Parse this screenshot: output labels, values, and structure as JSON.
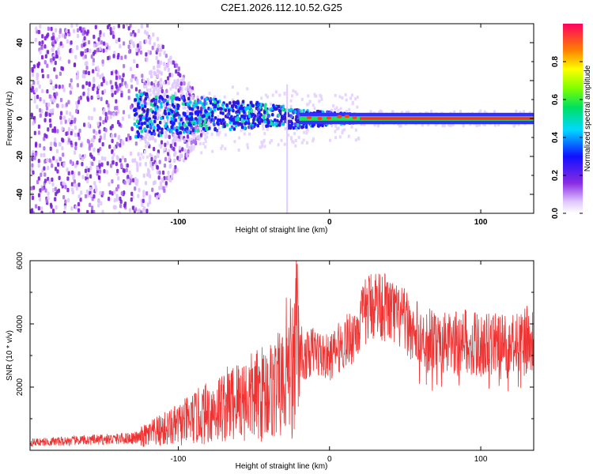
{
  "title": "C2E1.2026.112.10.52.G25",
  "colors": {
    "snr_line": "#ee3333",
    "axis": "#000000",
    "background": "#ffffff"
  },
  "chart_data": [
    {
      "type": "heatmap",
      "name": "spectrogram",
      "title": "C2E1.2026.112.10.52.G25",
      "xlabel": "Height of straight line (km)",
      "ylabel": "Frequency (Hz)",
      "xlim": [
        -198,
        135
      ],
      "ylim": [
        -50,
        50
      ],
      "xticks": [
        -100,
        0,
        100
      ],
      "yticks": [
        -40,
        -20,
        0,
        20,
        40
      ],
      "colorbar": {
        "label": "Normalized spectral amplitude",
        "range": [
          0,
          1
        ],
        "ticks": [
          "0.0",
          "0.2",
          "0.4",
          "0.6",
          "0.8"
        ]
      },
      "description_values": {
        "low_height_region": "broad noise across all frequencies below about -120 km",
        "mid_region_frequency_spread_hz": 10,
        "converged_frequency_hz": 0,
        "converged_from_km": 20
      }
    },
    {
      "type": "line",
      "name": "snr",
      "xlabel": "Height of straight line (km)",
      "ylabel": "SNR (10 * v/v)",
      "xlim": [
        -198,
        135
      ],
      "ylim": [
        0,
        6000
      ],
      "xticks": [
        -100,
        0,
        100
      ],
      "yticks": [
        2000,
        4000,
        6000
      ],
      "series": [
        {
          "name": "SNR",
          "x": [
            -198,
            -180,
            -160,
            -140,
            -125,
            -110,
            -100,
            -90,
            -80,
            -70,
            -60,
            -50,
            -40,
            -30,
            -25,
            -22,
            -20,
            -18,
            -15,
            -10,
            -5,
            0,
            5,
            10,
            15,
            20,
            25,
            30,
            35,
            40,
            45,
            50,
            55,
            60,
            70,
            80,
            90,
            100,
            110,
            120,
            130,
            135
          ],
          "values": [
            250,
            280,
            320,
            360,
            400,
            650,
            800,
            1000,
            1200,
            1400,
            1600,
            1700,
            1900,
            2100,
            2300,
            3800,
            3300,
            2800,
            3000,
            3200,
            3000,
            2900,
            3200,
            3400,
            3600,
            4000,
            4500,
            4700,
            4600,
            4400,
            4200,
            4100,
            3700,
            3600,
            3400,
            3350,
            3500,
            3300,
            3400,
            3300,
            3550,
            3700
          ]
        }
      ]
    }
  ]
}
